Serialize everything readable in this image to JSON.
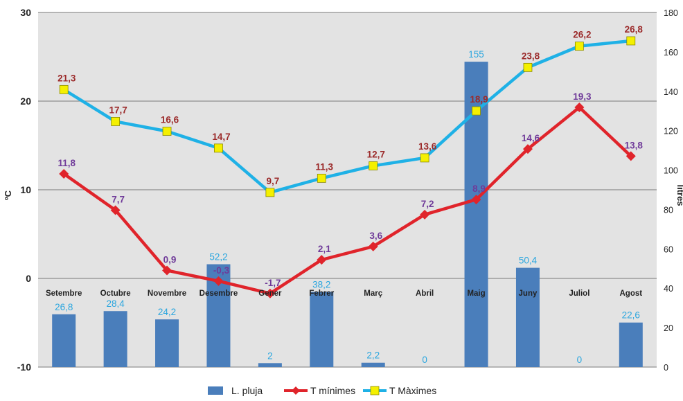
{
  "chart_data": {
    "type": "bar+line",
    "categories": [
      "Setembre",
      "Octubre",
      "Novembre",
      "Desembre",
      "Gener",
      "Febrer",
      "Març",
      "Abril",
      "Maig",
      "Juny",
      "Juliol",
      "Agost"
    ],
    "left_axis": {
      "label": "ºC",
      "ylim": [
        -10,
        30
      ],
      "ticks": [
        "-10",
        "0",
        "10",
        "20",
        "30"
      ]
    },
    "right_axis": {
      "label": "litres",
      "ylim": [
        0,
        180
      ],
      "ticks": [
        "0",
        "20",
        "40",
        "60",
        "80",
        "100",
        "120",
        "140",
        "160",
        "180"
      ]
    },
    "grid": true,
    "legend_position": "bottom",
    "series": [
      {
        "name": "L. pluja",
        "type": "bar",
        "axis": "right",
        "color": "#4a7ebb",
        "label_color": "#2aa6df",
        "values": [
          26.8,
          28.4,
          24.2,
          52.2,
          2,
          38.2,
          2.2,
          0,
          155,
          50.4,
          0,
          22.6
        ],
        "labels": [
          "26,8",
          "28,4",
          "24,2",
          "52,2",
          "2",
          "38,2",
          "2,2",
          "0",
          "155",
          "50,4",
          "0",
          "22,6"
        ]
      },
      {
        "name": "T mínimes",
        "type": "line",
        "axis": "left",
        "color": "#e0242b",
        "label_color": "#6f3a99",
        "values": [
          11.8,
          7.7,
          0.9,
          -0.3,
          -1.7,
          2.1,
          3.6,
          7.2,
          8.9,
          14.6,
          19.3,
          13.8
        ],
        "labels": [
          "11,8",
          "7,7",
          "0,9",
          "-0,3",
          "-1,7",
          "2,1",
          "3,6",
          "7,2",
          "8,9",
          "14,6",
          "19,3",
          "13,8"
        ]
      },
      {
        "name": "T Màximes",
        "type": "line",
        "axis": "left",
        "color": "#1fb1e6",
        "marker_color": "#f4f000",
        "label_color": "#9b2a2a",
        "values": [
          21.3,
          17.7,
          16.6,
          14.7,
          9.7,
          11.3,
          12.7,
          13.6,
          18.9,
          23.8,
          26.2,
          26.8
        ],
        "labels": [
          "21,3",
          "17,7",
          "16,6",
          "14,7",
          "9,7",
          "11,3",
          "12,7",
          "13,6",
          "18,9",
          "23,8",
          "26,2",
          "26,8"
        ]
      }
    ]
  }
}
